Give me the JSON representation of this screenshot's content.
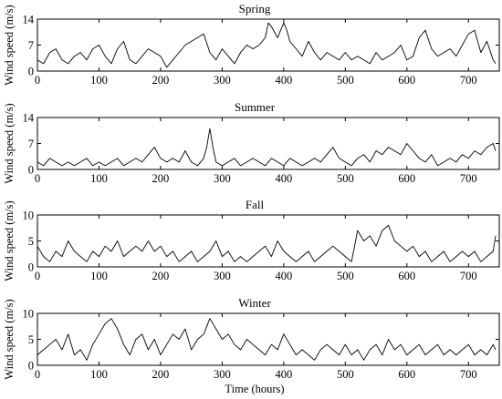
{
  "chart_data": [
    {
      "type": "line",
      "title": "Spring",
      "ylabel": "Wind speed (m/s)",
      "xlabel": "",
      "xlim": [
        0,
        750
      ],
      "ylim": [
        0,
        14
      ],
      "xticks": [
        0,
        100,
        200,
        300,
        400,
        500,
        600,
        700
      ],
      "yticks": [
        0,
        7,
        14
      ],
      "grid": false,
      "series": [
        {
          "color": "#000000",
          "x": [
            0,
            10,
            20,
            30,
            40,
            50,
            60,
            70,
            80,
            90,
            100,
            110,
            120,
            130,
            140,
            150,
            160,
            170,
            180,
            190,
            200,
            210,
            220,
            230,
            240,
            250,
            260,
            270,
            280,
            290,
            300,
            310,
            320,
            330,
            340,
            350,
            360,
            370,
            375,
            380,
            390,
            400,
            405,
            410,
            420,
            430,
            440,
            450,
            460,
            470,
            480,
            490,
            500,
            510,
            520,
            530,
            540,
            550,
            560,
            570,
            580,
            590,
            600,
            610,
            620,
            630,
            640,
            650,
            660,
            670,
            680,
            690,
            700,
            710,
            720,
            730,
            740,
            744
          ],
          "y": [
            3,
            2,
            5,
            6,
            3,
            2,
            4,
            5,
            3,
            6,
            7,
            4,
            2,
            6,
            8,
            3,
            2,
            4,
            6,
            5,
            4,
            1,
            3,
            5,
            7,
            8,
            9,
            10,
            5,
            3,
            6,
            4,
            2,
            5,
            7,
            6,
            7,
            9,
            13,
            12,
            9,
            13,
            11,
            8,
            6,
            4,
            8,
            5,
            3,
            5,
            4,
            3,
            5,
            3,
            4,
            3,
            2,
            5,
            3,
            4,
            5,
            7,
            3,
            4,
            9,
            11,
            6,
            4,
            5,
            6,
            4,
            7,
            10,
            11,
            5,
            8,
            3,
            2
          ]
        }
      ]
    },
    {
      "type": "line",
      "title": "Summer",
      "ylabel": "Wind speed (m/s)",
      "xlabel": "",
      "xlim": [
        0,
        750
      ],
      "ylim": [
        0,
        14
      ],
      "xticks": [
        0,
        100,
        200,
        300,
        400,
        500,
        600,
        700
      ],
      "yticks": [
        0,
        7,
        14
      ],
      "grid": false,
      "series": [
        {
          "color": "#000000",
          "x": [
            0,
            10,
            20,
            30,
            40,
            50,
            60,
            70,
            80,
            90,
            100,
            110,
            120,
            130,
            140,
            150,
            160,
            170,
            180,
            190,
            200,
            210,
            220,
            230,
            240,
            250,
            260,
            270,
            275,
            280,
            285,
            290,
            300,
            310,
            320,
            330,
            340,
            350,
            360,
            370,
            380,
            390,
            400,
            410,
            420,
            430,
            440,
            450,
            460,
            470,
            480,
            490,
            500,
            510,
            520,
            530,
            540,
            550,
            560,
            570,
            580,
            590,
            600,
            610,
            620,
            630,
            640,
            650,
            660,
            670,
            680,
            690,
            700,
            710,
            720,
            730,
            740,
            744
          ],
          "y": [
            2,
            1,
            3,
            2,
            1,
            2,
            1,
            2,
            3,
            1,
            2,
            1,
            2,
            3,
            1,
            2,
            3,
            2,
            4,
            6,
            3,
            2,
            3,
            2,
            5,
            2,
            1,
            3,
            6,
            11,
            6,
            2,
            1,
            2,
            3,
            1,
            2,
            3,
            2,
            1,
            3,
            2,
            1,
            3,
            2,
            1,
            2,
            3,
            2,
            4,
            6,
            3,
            2,
            1,
            3,
            4,
            2,
            5,
            4,
            6,
            5,
            4,
            7,
            5,
            3,
            2,
            4,
            1,
            2,
            3,
            2,
            4,
            3,
            5,
            4,
            6,
            7,
            5
          ]
        }
      ]
    },
    {
      "type": "line",
      "title": "Fall",
      "ylabel": "Wind speed (m/s)",
      "xlabel": "",
      "xlim": [
        0,
        750
      ],
      "ylim": [
        0,
        10
      ],
      "xticks": [
        0,
        100,
        200,
        300,
        400,
        500,
        600,
        700
      ],
      "yticks": [
        0,
        5,
        10
      ],
      "grid": false,
      "series": [
        {
          "color": "#000000",
          "x": [
            0,
            10,
            20,
            30,
            40,
            50,
            60,
            70,
            80,
            90,
            100,
            110,
            120,
            130,
            140,
            150,
            160,
            170,
            180,
            190,
            200,
            210,
            220,
            230,
            240,
            250,
            260,
            270,
            280,
            290,
            300,
            310,
            320,
            330,
            340,
            350,
            360,
            370,
            380,
            390,
            400,
            410,
            420,
            430,
            440,
            450,
            460,
            470,
            480,
            490,
            500,
            510,
            520,
            530,
            540,
            550,
            560,
            570,
            580,
            590,
            600,
            610,
            620,
            630,
            640,
            650,
            660,
            670,
            680,
            690,
            700,
            710,
            720,
            730,
            740,
            744
          ],
          "y": [
            4,
            2,
            1,
            3,
            2,
            5,
            3,
            2,
            1,
            3,
            2,
            4,
            3,
            5,
            2,
            3,
            4,
            3,
            5,
            3,
            4,
            2,
            3,
            1,
            2,
            3,
            1,
            2,
            3,
            5,
            2,
            3,
            1,
            2,
            1,
            2,
            3,
            4,
            2,
            5,
            3,
            2,
            1,
            2,
            3,
            1,
            2,
            3,
            4,
            3,
            2,
            1,
            7,
            5,
            6,
            4,
            7,
            8,
            5,
            4,
            3,
            4,
            2,
            3,
            1,
            2,
            3,
            1,
            2,
            3,
            2,
            3,
            1,
            2,
            3,
            6
          ]
        }
      ]
    },
    {
      "type": "line",
      "title": "Winter",
      "ylabel": "Wind speed (m/s)",
      "xlabel": "Time (hours)",
      "xlim": [
        0,
        750
      ],
      "ylim": [
        0,
        10
      ],
      "xticks": [
        0,
        100,
        200,
        300,
        400,
        500,
        600,
        700
      ],
      "yticks": [
        0,
        5,
        10
      ],
      "grid": false,
      "series": [
        {
          "color": "#000000",
          "x": [
            0,
            10,
            20,
            30,
            40,
            50,
            60,
            70,
            80,
            90,
            100,
            110,
            120,
            130,
            140,
            150,
            160,
            170,
            180,
            190,
            200,
            210,
            220,
            230,
            240,
            250,
            260,
            270,
            280,
            290,
            300,
            310,
            320,
            330,
            340,
            350,
            360,
            370,
            380,
            390,
            400,
            410,
            420,
            430,
            440,
            450,
            460,
            470,
            480,
            490,
            500,
            510,
            520,
            530,
            540,
            550,
            560,
            570,
            580,
            590,
            600,
            610,
            620,
            630,
            640,
            650,
            660,
            670,
            680,
            690,
            700,
            710,
            720,
            730,
            740,
            744
          ],
          "y": [
            2,
            3,
            4,
            5,
            3,
            6,
            2,
            3,
            1,
            4,
            6,
            8,
            9,
            7,
            4,
            2,
            5,
            6,
            3,
            5,
            2,
            4,
            6,
            5,
            7,
            3,
            5,
            6,
            9,
            7,
            5,
            6,
            4,
            3,
            5,
            4,
            3,
            2,
            4,
            3,
            6,
            4,
            2,
            3,
            2,
            1,
            3,
            4,
            3,
            2,
            4,
            2,
            3,
            1,
            3,
            4,
            2,
            5,
            3,
            4,
            2,
            3,
            4,
            2,
            3,
            4,
            2,
            3,
            2,
            3,
            4,
            2,
            3,
            2,
            4,
            3
          ]
        }
      ]
    }
  ]
}
